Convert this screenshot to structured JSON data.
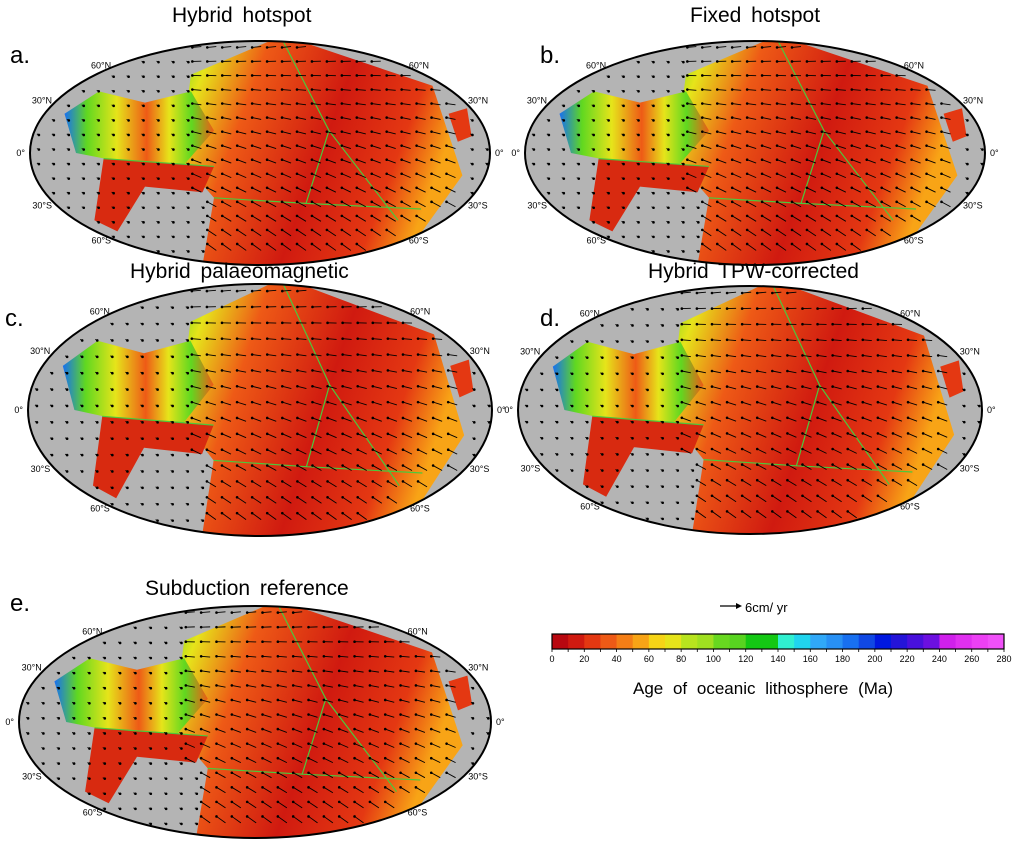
{
  "panels": [
    {
      "letter": "a.",
      "title": "Hybrid  hotspot"
    },
    {
      "letter": "b.",
      "title": "Fixed  hotspot"
    },
    {
      "letter": "c.",
      "title": "Hybrid  palaeomagnetic"
    },
    {
      "letter": "d.",
      "title": "Hybrid  TPW-corrected"
    },
    {
      "letter": "e.",
      "title": "Subduction  reference"
    }
  ],
  "latitude_labels": [
    "60°N",
    "30°N",
    "0°",
    "30°S",
    "60°S"
  ],
  "velocity_scale": {
    "label": "6cm/ yr"
  },
  "colorbar": {
    "label": "Age  of  oceanic  lithosphere  (Ma)",
    "range": [
      0,
      280
    ],
    "ticks": [
      "0",
      "20",
      "40",
      "60",
      "80",
      "100",
      "120",
      "140",
      "160",
      "180",
      "200",
      "220",
      "240",
      "260",
      "280"
    ],
    "colors": [
      "#b80810",
      "#d01a10",
      "#e43812",
      "#ee5a16",
      "#f47e16",
      "#f8a416",
      "#f6d416",
      "#e6e41a",
      "#b8e41e",
      "#a0e020",
      "#68d820",
      "#58d420",
      "#14c814",
      "#14c814",
      "#30f0d0",
      "#20d4ee",
      "#30a8f8",
      "#2890f4",
      "#1870f0",
      "#1048e4",
      "#0018e0",
      "#2414d8",
      "#4810dc",
      "#6c10e0",
      "#d020ec",
      "#e030f0",
      "#ec40f4",
      "#f050f8"
    ]
  },
  "colors": {
    "land": "#b4b4b4",
    "plate_boundary": "#4cc83c",
    "arrow": "#000000"
  }
}
